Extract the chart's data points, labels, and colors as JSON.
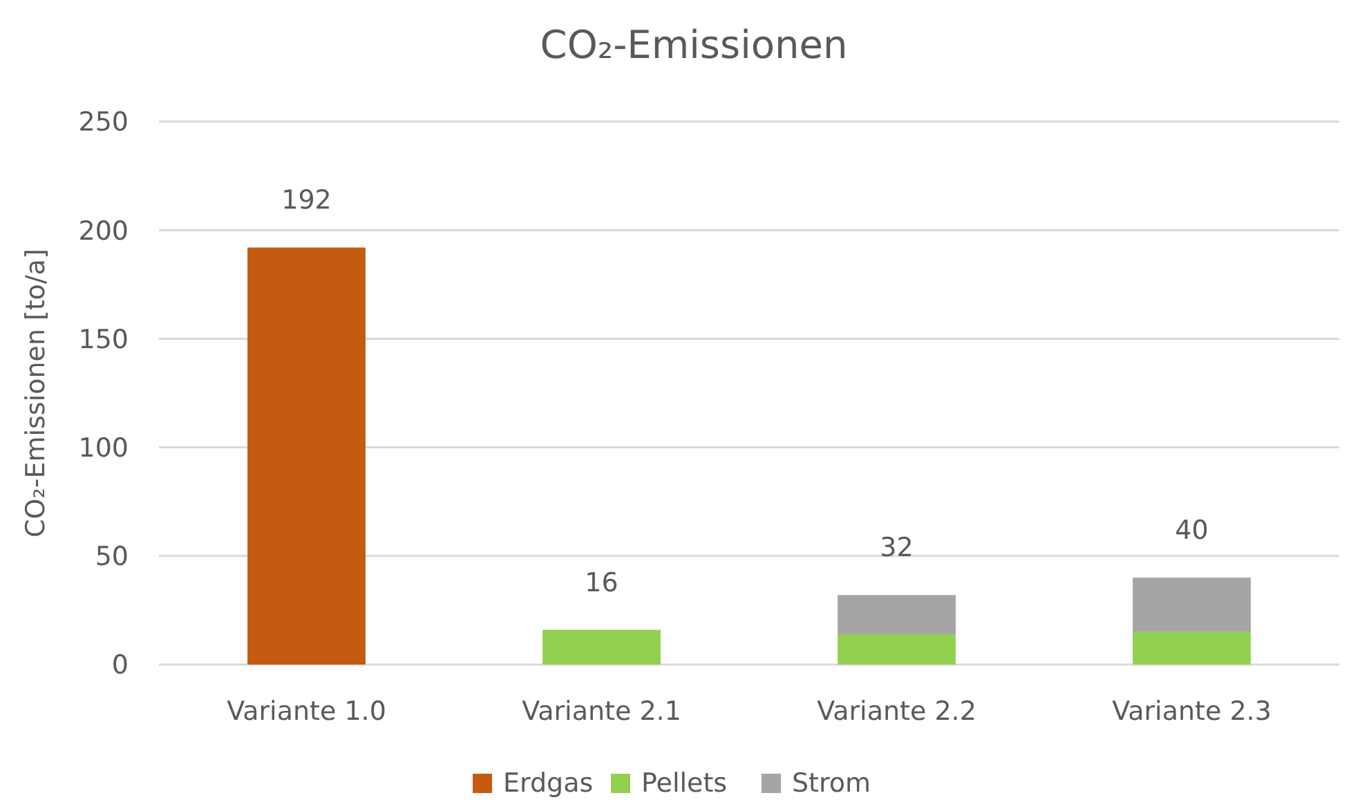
{
  "chart_data": {
    "type": "bar",
    "title": "CO₂-Emissionen",
    "ylabel": "CO₂-Emissionen [to/a]",
    "categories": [
      "Variante 1.0",
      "Variante 2.1",
      "Variante 2.2",
      "Variante 2.3"
    ],
    "stacked": true,
    "series": [
      {
        "name": "Erdgas",
        "color": "#c55a11",
        "values": [
          192,
          null,
          null,
          null
        ]
      },
      {
        "name": "Pellets",
        "color": "#92d050",
        "values": [
          null,
          16,
          14,
          15
        ]
      },
      {
        "name": "Strom",
        "color": "#a5a5a5",
        "values": [
          null,
          null,
          18,
          25
        ]
      }
    ],
    "totals": [
      "192",
      "16",
      "32",
      "40"
    ],
    "ylim": [
      0,
      250
    ],
    "yticks": [
      0,
      50,
      100,
      150,
      200,
      250
    ],
    "grid": "y",
    "legend": "bottom"
  }
}
